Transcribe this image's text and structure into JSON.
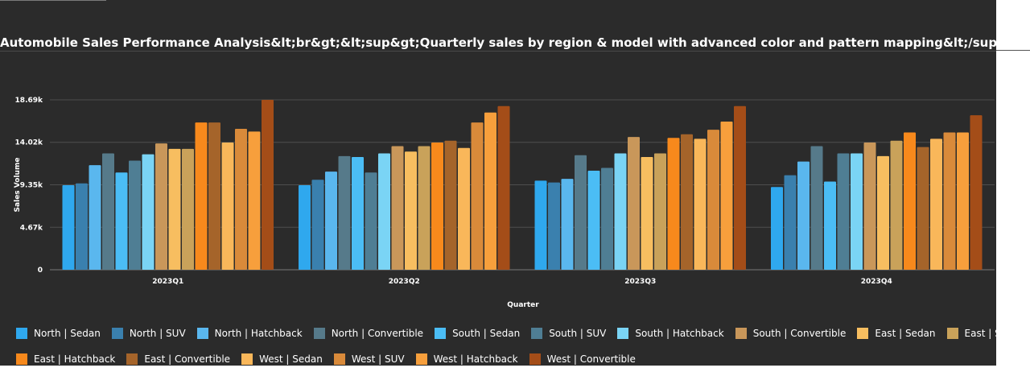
{
  "title": "Automobile Sales Performance Analysis&lt;br&gt;&lt;sup&gt;Quarterly sales by region & model with advanced color and pattern mapping&lt;/sup&gt;",
  "chart_data": {
    "type": "bar",
    "categories": [
      "2023Q1",
      "2023Q2",
      "2023Q3",
      "2023Q4"
    ],
    "xlabel": "Quarter",
    "ylabel": "Sales Volume",
    "ylim": [
      0,
      18690
    ],
    "yticks": [
      {
        "value": 0,
        "label": "0"
      },
      {
        "value": 4670,
        "label": "4.67k"
      },
      {
        "value": 9350,
        "label": "9.35k"
      },
      {
        "value": 14020,
        "label": "14.02k"
      },
      {
        "value": 18690,
        "label": "18.69k"
      }
    ],
    "grid": true,
    "legend_position": "bottom",
    "series": [
      {
        "name": "North | Sedan",
        "color": "#2fa8ee",
        "values": [
          9300,
          9300,
          9800,
          9100
        ]
      },
      {
        "name": "North | SUV",
        "color": "#3a80ae",
        "values": [
          9500,
          9900,
          9600,
          10400
        ]
      },
      {
        "name": "North | Hatchback",
        "color": "#5ab7ee",
        "values": [
          11500,
          10800,
          10000,
          11900
        ]
      },
      {
        "name": "North | Convertible",
        "color": "#567a8a",
        "values": [
          12800,
          12500,
          12600,
          13600
        ]
      },
      {
        "name": "South | Sedan",
        "color": "#4bbdf5",
        "values": [
          10700,
          12400,
          10900,
          9700
        ]
      },
      {
        "name": "South | SUV",
        "color": "#4f7e94",
        "values": [
          12000,
          10700,
          11200,
          12800
        ]
      },
      {
        "name": "South | Hatchback",
        "color": "#7ad4f5",
        "values": [
          12700,
          12800,
          12800,
          12800
        ]
      },
      {
        "name": "South | Convertible",
        "color": "#c9975a",
        "values": [
          13900,
          13600,
          14600,
          14000
        ]
      },
      {
        "name": "East | Sedan",
        "color": "#f7be60",
        "values": [
          13300,
          13000,
          12400,
          12500
        ]
      },
      {
        "name": "East | SUV",
        "color": "#c9a25a",
        "values": [
          13300,
          13600,
          12800,
          14200
        ]
      },
      {
        "name": "East | Hatchback",
        "color": "#f7891c",
        "values": [
          16200,
          14000,
          14500,
          15100
        ]
      },
      {
        "name": "East | Convertible",
        "color": "#a5642a",
        "values": [
          16200,
          14200,
          14900,
          13500
        ]
      },
      {
        "name": "West | Sedan",
        "color": "#f9b75a",
        "values": [
          14000,
          13400,
          14400,
          14400
        ]
      },
      {
        "name": "West | SUV",
        "color": "#d98a3a",
        "values": [
          15500,
          16200,
          15400,
          15100
        ]
      },
      {
        "name": "West | Hatchback",
        "color": "#f79f3c",
        "values": [
          15200,
          17300,
          16300,
          15100
        ]
      },
      {
        "name": "West | Convertible",
        "color": "#a44d18",
        "values": [
          18690,
          18000,
          18000,
          17000
        ]
      }
    ]
  }
}
